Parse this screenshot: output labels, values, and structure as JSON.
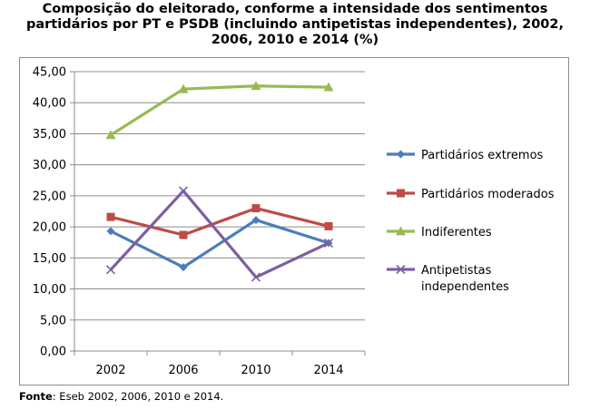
{
  "title_lines": [
    "Composição do eleitorado, conforme a intensidade dos sentimentos",
    "partidários por PT e PSDB (incluindo antipetistas independentes), 2002,",
    "2006, 2010 e 2014 (%)"
  ],
  "source": {
    "label": "Fonte",
    "text": ": Eseb 2002, 2006, 2010 e 2014."
  },
  "chart_data": {
    "type": "line",
    "title": "Composição do eleitorado, conforme a intensidade dos sentimentos partidários por PT e PSDB (incluindo antipetistas independentes), 2002, 2006, 2010 e 2014 (%)",
    "categories": [
      "2002",
      "2006",
      "2010",
      "2014"
    ],
    "ylim": [
      0,
      45
    ],
    "yticks": [
      "0,00",
      "5,00",
      "10,00",
      "15,00",
      "20,00",
      "25,00",
      "30,00",
      "35,00",
      "40,00",
      "45,00"
    ],
    "ytick_values": [
      0,
      5,
      10,
      15,
      20,
      25,
      30,
      35,
      40,
      45
    ],
    "grid": true,
    "legend_position": "right",
    "series": [
      {
        "name": "Partidários extremos",
        "values": [
          19.3,
          13.5,
          21.1,
          17.4
        ],
        "color": "#4a7ebb",
        "marker": "diamond"
      },
      {
        "name": "Partidários moderados",
        "values": [
          21.6,
          18.7,
          23.0,
          20.1
        ],
        "color": "#be4b48",
        "marker": "square"
      },
      {
        "name": "Indiferentes",
        "values": [
          34.8,
          42.2,
          42.7,
          42.5
        ],
        "color": "#98b954",
        "marker": "triangle"
      },
      {
        "name": "Antipetistas independentes",
        "name_lines": [
          "Antipetistas",
          "independentes"
        ],
        "values": [
          13.1,
          25.8,
          11.9,
          17.4
        ],
        "color": "#7d5fa0",
        "marker": "x"
      }
    ]
  }
}
